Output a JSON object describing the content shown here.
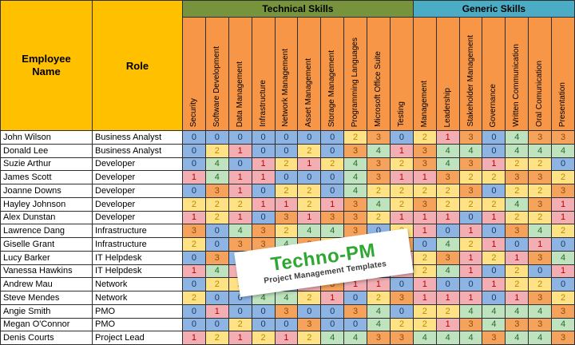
{
  "table": {
    "corner": {
      "employee_header": "Employee Name",
      "role_header": "Role"
    },
    "groups": [
      {
        "label": "Technical Skills",
        "span": 10
      },
      {
        "label": "Generic Skills",
        "span": 7
      }
    ],
    "skill_columns": [
      "Security",
      "Software Development",
      "Data Management",
      "Infrastructure",
      "Network Management",
      "Asset Management",
      "Storage Management",
      "Programming Languages",
      "Microsoft Office Suite",
      "Testing",
      "Management",
      "Leadership",
      "Stakeholder Management",
      "Governance",
      "Written Communication",
      "Oral Comunication",
      "Presentation"
    ],
    "rows": [
      {
        "name": "John Wilson",
        "role": "Business Analyst",
        "scores": [
          0,
          0,
          0,
          0,
          0,
          0,
          0,
          2,
          3,
          0,
          2,
          1,
          3,
          0,
          4,
          3,
          3
        ]
      },
      {
        "name": "Donald Lee",
        "role": "Business Analyst",
        "scores": [
          0,
          2,
          1,
          0,
          0,
          2,
          0,
          3,
          4,
          1,
          3,
          4,
          4,
          0,
          4,
          4,
          4
        ]
      },
      {
        "name": "Suzie Arthur",
        "role": "Developer",
        "scores": [
          0,
          4,
          0,
          1,
          2,
          1,
          2,
          4,
          3,
          2,
          3,
          4,
          3,
          1,
          2,
          2,
          0
        ]
      },
      {
        "name": "James Scott",
        "role": "Developer",
        "scores": [
          1,
          4,
          1,
          1,
          0,
          0,
          0,
          4,
          3,
          1,
          1,
          3,
          2,
          2,
          3,
          3,
          2
        ]
      },
      {
        "name": "Joanne Downs",
        "role": "Developer",
        "scores": [
          0,
          3,
          1,
          0,
          2,
          2,
          0,
          4,
          2,
          2,
          2,
          2,
          3,
          0,
          2,
          2,
          3
        ]
      },
      {
        "name": "Hayley Johnson",
        "role": "Developer",
        "scores": [
          2,
          2,
          2,
          1,
          1,
          2,
          1,
          3,
          4,
          2,
          3,
          2,
          2,
          2,
          4,
          3,
          1
        ]
      },
      {
        "name": "Alex Dunstan",
        "role": "Developer",
        "scores": [
          1,
          2,
          1,
          0,
          3,
          1,
          3,
          3,
          2,
          1,
          1,
          1,
          0,
          1,
          2,
          2,
          1
        ]
      },
      {
        "name": "Lawrence Dang",
        "role": "Infrastructure",
        "scores": [
          3,
          0,
          4,
          3,
          2,
          4,
          4,
          3,
          0,
          2,
          1,
          0,
          1,
          0,
          3,
          4,
          2
        ]
      },
      {
        "name": "Giselle Grant",
        "role": "Infrastructure",
        "scores": [
          2,
          0,
          3,
          3,
          4,
          3,
          2,
          2,
          1,
          3,
          0,
          4,
          2,
          1,
          0,
          1,
          0
        ]
      },
      {
        "name": "Lucy Barker",
        "role": "IT Helpdesk",
        "scores": [
          0,
          3,
          0,
          2,
          1,
          2,
          2,
          3,
          3,
          1,
          2,
          3,
          1,
          2,
          1,
          3,
          4
        ]
      },
      {
        "name": "Vanessa Hawkins",
        "role": "IT Helpdesk",
        "scores": [
          1,
          4,
          1,
          2,
          1,
          1,
          2,
          4,
          0,
          1,
          2,
          4,
          1,
          0,
          2,
          0,
          1
        ]
      },
      {
        "name": "Andrew Mau",
        "role": "Network",
        "scores": [
          0,
          2,
          2,
          1,
          0,
          1,
          3,
          1,
          1,
          0,
          1,
          0,
          0,
          1,
          2,
          2,
          0
        ]
      },
      {
        "name": "Steve Mendes",
        "role": "Network",
        "scores": [
          2,
          0,
          0,
          4,
          4,
          2,
          1,
          0,
          2,
          3,
          1,
          1,
          1,
          0,
          1,
          3,
          2
        ]
      },
      {
        "name": "Angie Smith",
        "role": "PMO",
        "scores": [
          0,
          1,
          0,
          0,
          3,
          0,
          0,
          3,
          4,
          0,
          2,
          2,
          4,
          4,
          4,
          4,
          3
        ]
      },
      {
        "name": "Megan O'Connor",
        "role": "PMO",
        "scores": [
          0,
          0,
          2,
          0,
          0,
          3,
          0,
          0,
          4,
          2,
          2,
          1,
          3,
          4,
          3,
          3,
          4
        ]
      },
      {
        "name": "Denis Courts",
        "role": "Project Lead",
        "scores": [
          1,
          2,
          1,
          2,
          1,
          2,
          4,
          4,
          3,
          3,
          4,
          4,
          4,
          3,
          4,
          4,
          3
        ]
      }
    ]
  },
  "score_legend": {
    "0": {
      "bg": "#8EB4E3",
      "text": "#17375E"
    },
    "1": {
      "bg": "#F3AEB4",
      "text": "#B80000"
    },
    "2": {
      "bg": "#FFE285",
      "text": "#B88A00"
    },
    "3": {
      "bg": "#F5A35C",
      "text": "#8F4A06"
    },
    "4": {
      "bg": "#BFE3BF",
      "text": "#2B6A2B"
    }
  },
  "colors": {
    "corner_yellow": "#FFC000",
    "banner_technical": "#77933C",
    "banner_generic": "#4BACC6",
    "column_header_orange": "#F79646",
    "watermark_green": "#2FA832"
  },
  "watermark": {
    "title": "Techno-PM",
    "subtitle": "Project Management Templates"
  }
}
